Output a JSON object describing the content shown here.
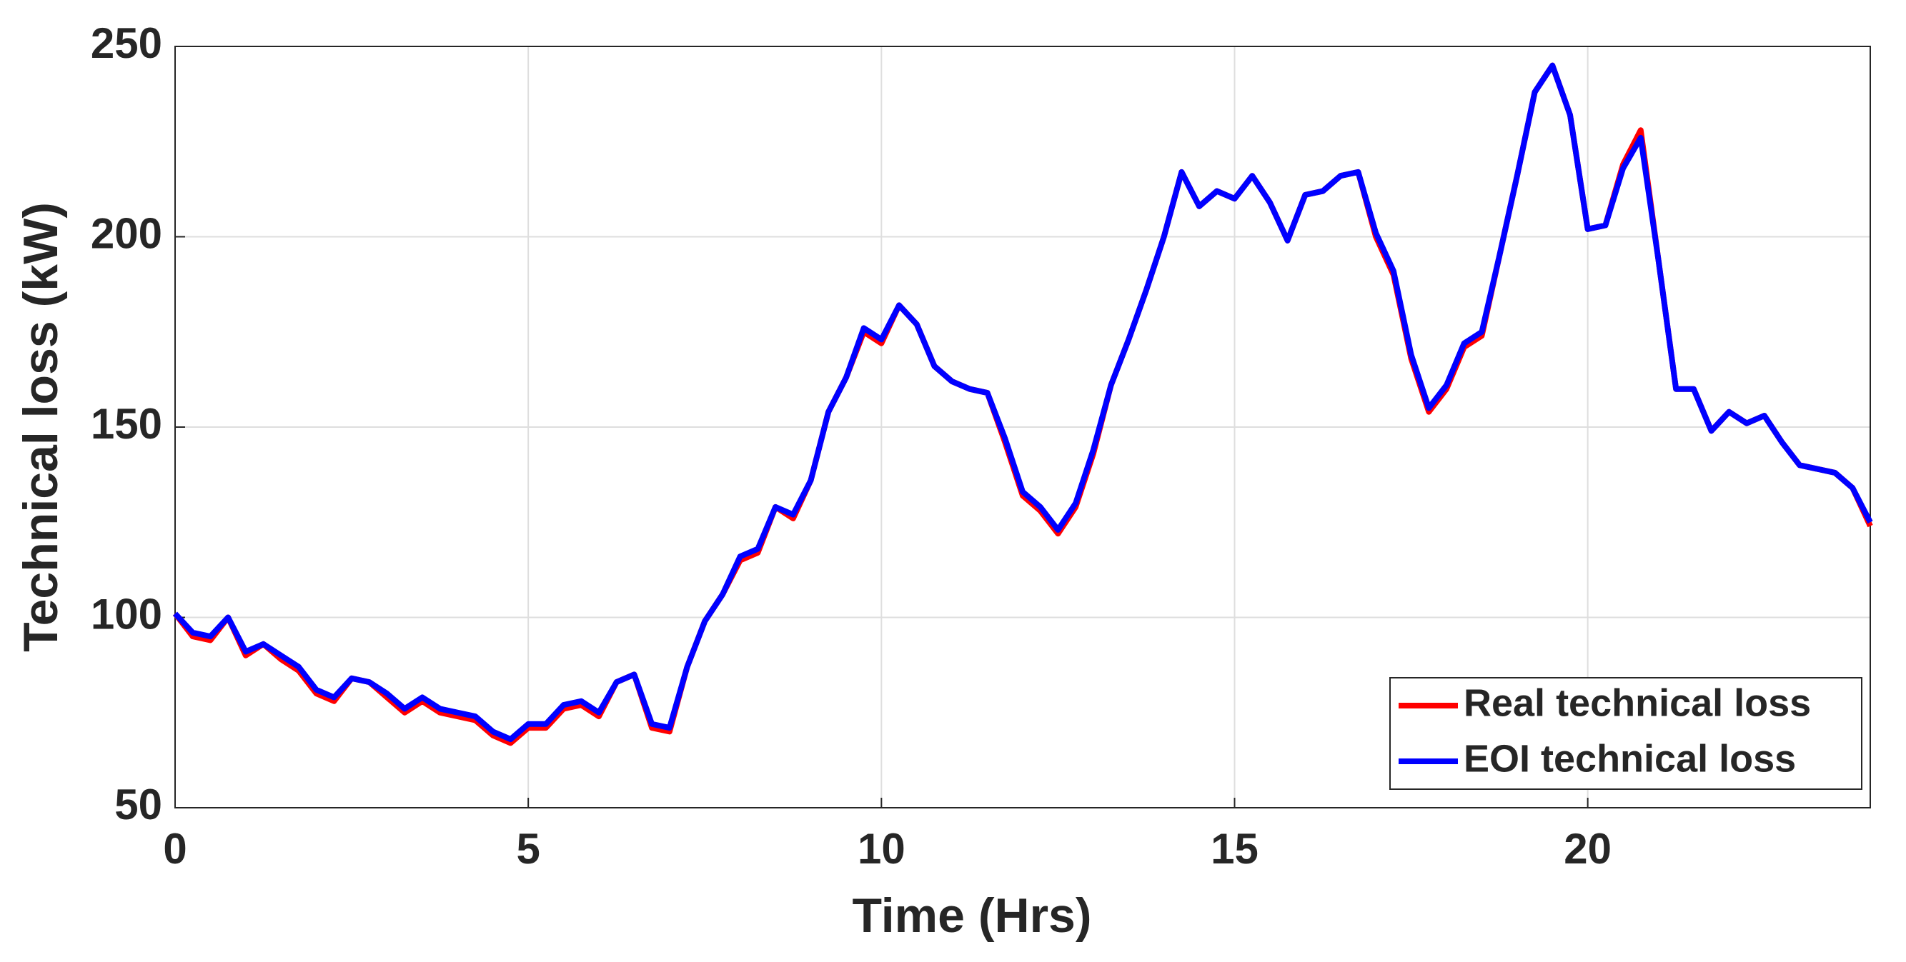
{
  "chart_data": {
    "type": "line",
    "x_label": "Time (Hrs)",
    "y_label": "Technical loss (kW)",
    "x": [
      0,
      0.25,
      0.5,
      0.75,
      1,
      1.25,
      1.5,
      1.75,
      2,
      2.25,
      2.5,
      2.75,
      3,
      3.25,
      3.5,
      3.75,
      4,
      4.25,
      4.5,
      4.75,
      5,
      5.25,
      5.5,
      5.75,
      6,
      6.25,
      6.5,
      6.75,
      7,
      7.25,
      7.5,
      7.75,
      8,
      8.25,
      8.5,
      8.75,
      9,
      9.25,
      9.5,
      9.75,
      10,
      10.25,
      10.5,
      10.75,
      11,
      11.25,
      11.5,
      11.75,
      12,
      12.25,
      12.5,
      12.75,
      13,
      13.25,
      13.5,
      13.75,
      14,
      14.25,
      14.5,
      14.75,
      15,
      15.25,
      15.5,
      15.75,
      16,
      16.25,
      16.5,
      16.75,
      17,
      17.25,
      17.5,
      17.75,
      18,
      18.25,
      18.5,
      18.75,
      19,
      19.25,
      19.5,
      19.75,
      20,
      20.25,
      20.5,
      20.75,
      21,
      21.25,
      21.5,
      21.75,
      22,
      22.25,
      22.5,
      22.75,
      23,
      23.25,
      23.5,
      23.75,
      24
    ],
    "series": [
      {
        "name": "Real technical loss",
        "color": "#ff0000",
        "values": [
          101,
          95,
          94,
          100,
          90,
          93,
          89,
          86,
          80,
          78,
          84,
          83,
          79,
          75,
          78,
          75,
          74,
          73,
          69,
          67,
          71,
          71,
          76,
          77,
          74,
          83,
          85,
          71,
          70,
          87,
          99,
          106,
          115,
          117,
          129,
          126,
          136,
          154,
          163,
          175,
          172,
          182,
          177,
          166,
          162,
          160,
          159,
          146,
          132,
          128,
          122,
          129,
          143,
          161,
          173,
          186,
          200,
          217,
          208,
          212,
          210,
          216,
          209,
          199,
          211,
          212,
          216,
          217,
          200,
          190,
          168,
          154,
          160,
          171,
          174,
          195,
          216,
          238,
          245,
          232,
          202,
          203,
          219,
          228,
          194,
          160,
          160,
          149,
          154,
          151,
          153,
          146,
          140,
          139,
          138,
          134,
          124
        ]
      },
      {
        "name": "EOI technical loss",
        "color": "#0000ff",
        "values": [
          101,
          96,
          95,
          100,
          91,
          93,
          90,
          87,
          81,
          79,
          84,
          83,
          80,
          76,
          79,
          76,
          75,
          74,
          70,
          68,
          72,
          72,
          77,
          78,
          75,
          83,
          85,
          72,
          71,
          87,
          99,
          106,
          116,
          118,
          129,
          127,
          136,
          154,
          163,
          176,
          173,
          182,
          177,
          166,
          162,
          160,
          159,
          147,
          133,
          129,
          123,
          130,
          144,
          161,
          173,
          186,
          200,
          217,
          208,
          212,
          210,
          216,
          209,
          199,
          211,
          212,
          216,
          217,
          201,
          191,
          169,
          155,
          161,
          172,
          175,
          195,
          216,
          238,
          245,
          232,
          202,
          203,
          218,
          226,
          194,
          160,
          160,
          149,
          154,
          151,
          153,
          146,
          140,
          139,
          138,
          134,
          125
        ]
      }
    ],
    "xlim": [
      0,
      24
    ],
    "xticks": [
      0,
      5,
      10,
      15,
      20
    ],
    "ylim": [
      50,
      250
    ],
    "yticks": [
      50,
      100,
      150,
      200,
      250
    ],
    "grid": true,
    "legend": "lower right"
  }
}
